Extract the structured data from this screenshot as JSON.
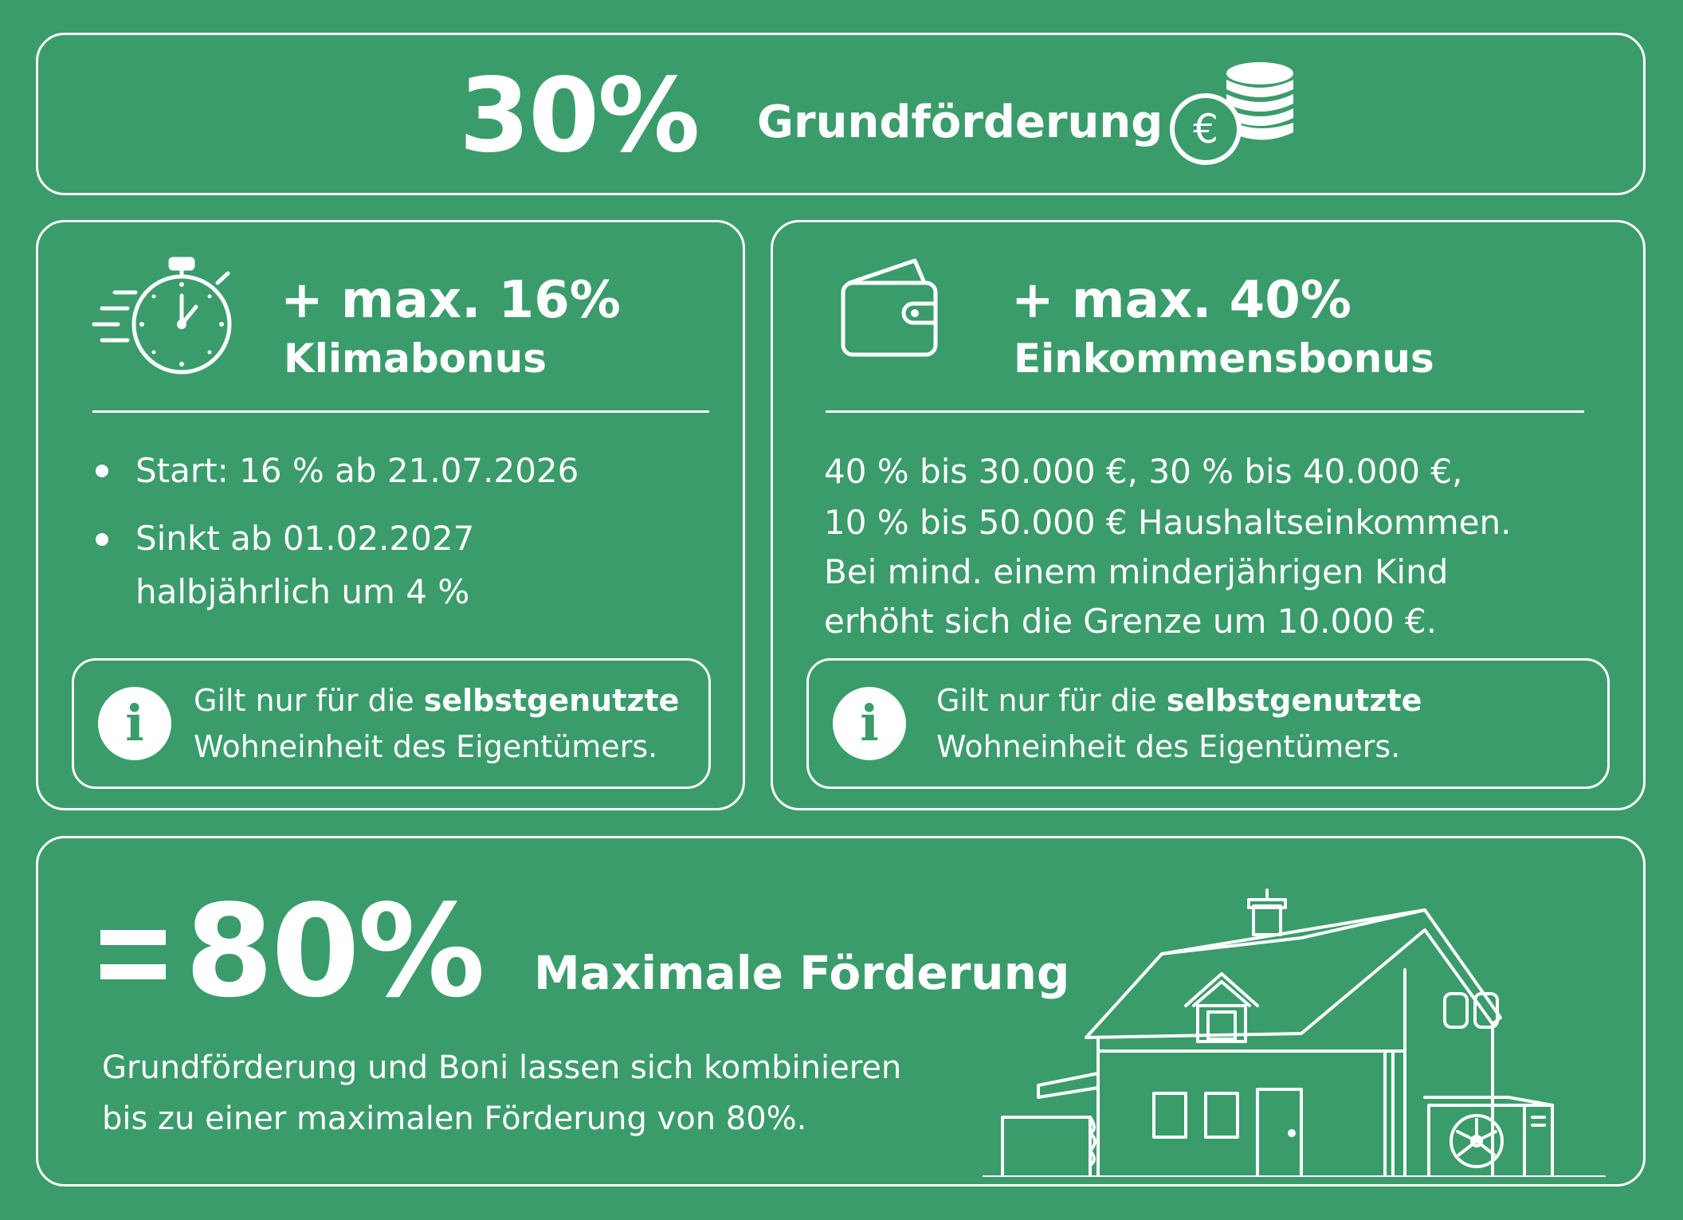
{
  "basis": {
    "percent": "30%",
    "label": "Grundförderung",
    "icon": "euro-coins-icon"
  },
  "klimabonus": {
    "value": "+ max. 16%",
    "name": "Klimabonus",
    "icon": "stopwatch-icon",
    "bullets": [
      "Start: 16 % ab 21.07.2026",
      "Sinkt ab 01.02.2027",
      "halbjährlich um 4 %"
    ],
    "info": {
      "icon": "info-icon",
      "line1_prefix": "Gilt nur für die ",
      "line1_bold": "selbstgenutzte",
      "line2": "Wohneinheit des Eigentümers."
    }
  },
  "einkommensbonus": {
    "value": "+ max. 40%",
    "name": "Einkommensbonus",
    "icon": "wallet-icon",
    "lines": [
      "40 % bis 30.000 €, 30 % bis 40.000 €,",
      "10 % bis 50.000 € Haushaltseinkommen.",
      "Bei mind. einem minderjährigen Kind",
      "erhöht sich die Grenze um 10.000 €."
    ],
    "info": {
      "icon": "info-icon",
      "line1_prefix": "Gilt nur für die ",
      "line1_bold": "selbstgenutzte",
      "line2": "Wohneinheit des Eigentümers."
    }
  },
  "maximal": {
    "equals": "=",
    "percent": "80%",
    "label": "Maximale Förderung",
    "desc_line1": "Grundförderung und Boni lassen sich kombinieren",
    "desc_line2": "bis zu einer maximalen Förderung von 80%.",
    "icon": "house-heatpump-icon"
  },
  "colors": {
    "background": "#3a9c6b",
    "foreground": "#ffffff"
  }
}
